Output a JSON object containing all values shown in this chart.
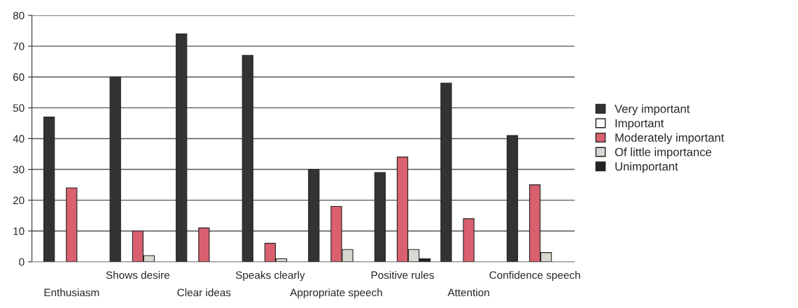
{
  "chart_data": {
    "type": "bar",
    "categories": [
      "Enthusiasm",
      "Shows desire",
      "Clear ideas",
      "Speaks clearly",
      "Appropriate speech",
      "Positive rules",
      "Attention",
      "Confidence speech"
    ],
    "series": [
      {
        "name": "Very important",
        "color": "#333333",
        "values": [
          47,
          60,
          74,
          67,
          30,
          29,
          58,
          41
        ]
      },
      {
        "name": "Important",
        "color": "#ffffff",
        "values": [
          null,
          null,
          null,
          null,
          null,
          null,
          null,
          null
        ]
      },
      {
        "name": "Moderately important",
        "color": "#d9606e",
        "values": [
          24,
          10,
          11,
          6,
          18,
          34,
          14,
          25
        ]
      },
      {
        "name": "Of little importance",
        "color": "#d8d8d0",
        "values": [
          null,
          2,
          null,
          1,
          4,
          4,
          null,
          3
        ]
      },
      {
        "name": "Unimportant",
        "color": "#222222",
        "values": [
          null,
          null,
          null,
          null,
          null,
          1,
          null,
          null
        ]
      }
    ],
    "ylim": [
      0,
      80
    ],
    "yticks": [
      0,
      10,
      20,
      30,
      40,
      50,
      60,
      70,
      80
    ],
    "grid": "y",
    "legend": "right"
  }
}
